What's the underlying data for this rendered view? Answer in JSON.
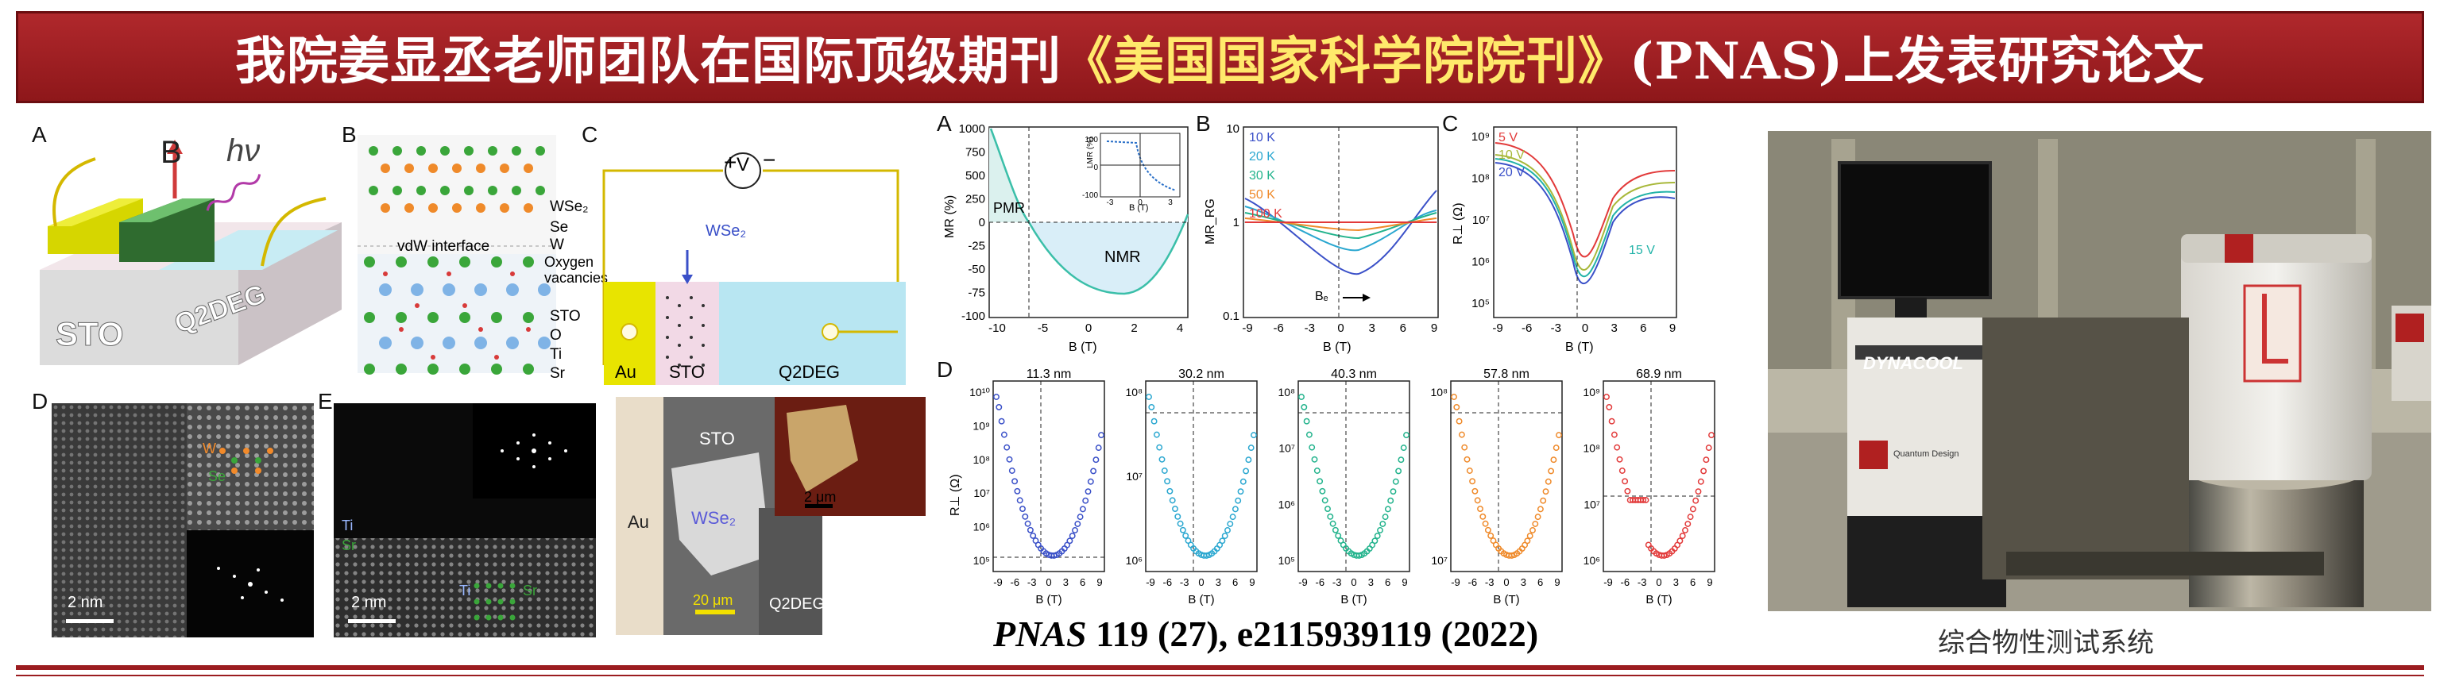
{
  "banner": {
    "title_part1": "我院姜显丞老师团队在国际顶级期刊",
    "title_highlight": "《美国国家科学院院刊》",
    "title_part2": "(PNAS)上发表研究论文"
  },
  "figure_left": {
    "labels": {
      "a": "A",
      "b": "B",
      "c": "C",
      "d": "D",
      "e": "E"
    },
    "a": {
      "b_symbol": "B",
      "hv": "hν",
      "sto": "STO",
      "q2deg": "Q2DEG"
    },
    "b": {
      "wse2": "WSe₂",
      "se": "Se",
      "w": "W",
      "vdw": "vdW interface",
      "oxygen": "Oxygen vacancies",
      "sto": "STO",
      "o": "O",
      "ti": "Ti",
      "sr": "Sr"
    },
    "c": {
      "wse2": "WSe₂",
      "au": "Au",
      "sto": "STO",
      "q2deg": "Q2DEG",
      "voltage": "V",
      "plus": "+",
      "minus": "−",
      "photo_sto": "STO",
      "photo_au": "Au",
      "photo_wse2": "WSe₂",
      "photo_q2deg": "Q2DEG",
      "scale_20": "20 μm",
      "scale_2": "2 μm"
    },
    "d": {
      "scale": "2 nm",
      "w": "W",
      "se": "Se"
    },
    "e": {
      "scale": "2 nm",
      "ti": "Ti",
      "sr": "Sr",
      "ti2": "Ti",
      "sr2": "Sr"
    }
  },
  "figure_right": {
    "labels": {
      "a": "A",
      "b": "B",
      "c": "C",
      "d": "D"
    },
    "a": {
      "ylabel": "MR (%)",
      "xlabel": "B (T)",
      "pmr": "PMR",
      "nmr": "NMR",
      "yticks": [
        "1000",
        "750",
        "500",
        "250",
        "0",
        "-25",
        "-50",
        "-75",
        "-100"
      ],
      "xticks": [
        "-10",
        "-5",
        "0",
        "2",
        "4"
      ],
      "inset_ylabel": "LMR (%)",
      "inset_xlabel": "B (T)",
      "inset_yticks": [
        "100",
        "0",
        "-100"
      ],
      "inset_xticks": [
        "-3",
        "0",
        "3"
      ]
    },
    "b": {
      "ylabel": "MR_RG",
      "xlabel": "B (T)",
      "yticks": [
        "10",
        "1",
        "0.1"
      ],
      "xticks": [
        "-9",
        "-6",
        "-3",
        "0",
        "3",
        "6",
        "9"
      ],
      "series": [
        "10 K",
        "20 K",
        "30 K",
        "50 K",
        "100 K"
      ],
      "be": "Bₑ"
    },
    "c": {
      "ylabel": "R⊥ (Ω)",
      "xlabel": "B (T)",
      "yticks": [
        "10⁹",
        "10⁸",
        "10⁷",
        "10⁶",
        "10⁵"
      ],
      "xticks": [
        "-9",
        "-6",
        "-3",
        "0",
        "3",
        "6",
        "9"
      ],
      "series": [
        "5 V",
        "10 V",
        "20 V",
        "15 V"
      ]
    },
    "d": {
      "ylabel": "R⊥ (Ω)",
      "xlabel": "B (T)",
      "xticks": [
        "-9",
        "-6",
        "-3",
        "0",
        "3",
        "6",
        "9"
      ],
      "panels": [
        {
          "thickness": "11.3 nm",
          "yticks": [
            "10¹⁰",
            "10⁹",
            "10⁸",
            "10⁷",
            "10⁶",
            "10⁵"
          ],
          "color": "#3a50c8"
        },
        {
          "thickness": "30.2 nm",
          "yticks": [
            "10⁸",
            "10⁷",
            "10⁶"
          ],
          "color": "#2aa7d0"
        },
        {
          "thickness": "40.3 nm",
          "yticks": [
            "10⁸",
            "10⁷",
            "10⁶",
            "10⁵"
          ],
          "color": "#22b38c"
        },
        {
          "thickness": "57.8 nm",
          "yticks": [
            "10⁸",
            "10⁷"
          ],
          "color": "#ef8a2a"
        },
        {
          "thickness": "68.9 nm",
          "yticks": [
            "10⁹",
            "10⁸",
            "10⁷",
            "10⁶"
          ],
          "color": "#e23a3a"
        }
      ]
    }
  },
  "photo": {
    "brand": "DYNACOOL",
    "maker": "Quantum Design",
    "caption": "综合物性测试系统"
  },
  "citation": {
    "journal": "PNAS",
    "details": " 119 (27), e2115939119 (2022)"
  },
  "colors": {
    "banner": "#9b1c20",
    "highlight": "#ffe96b"
  }
}
